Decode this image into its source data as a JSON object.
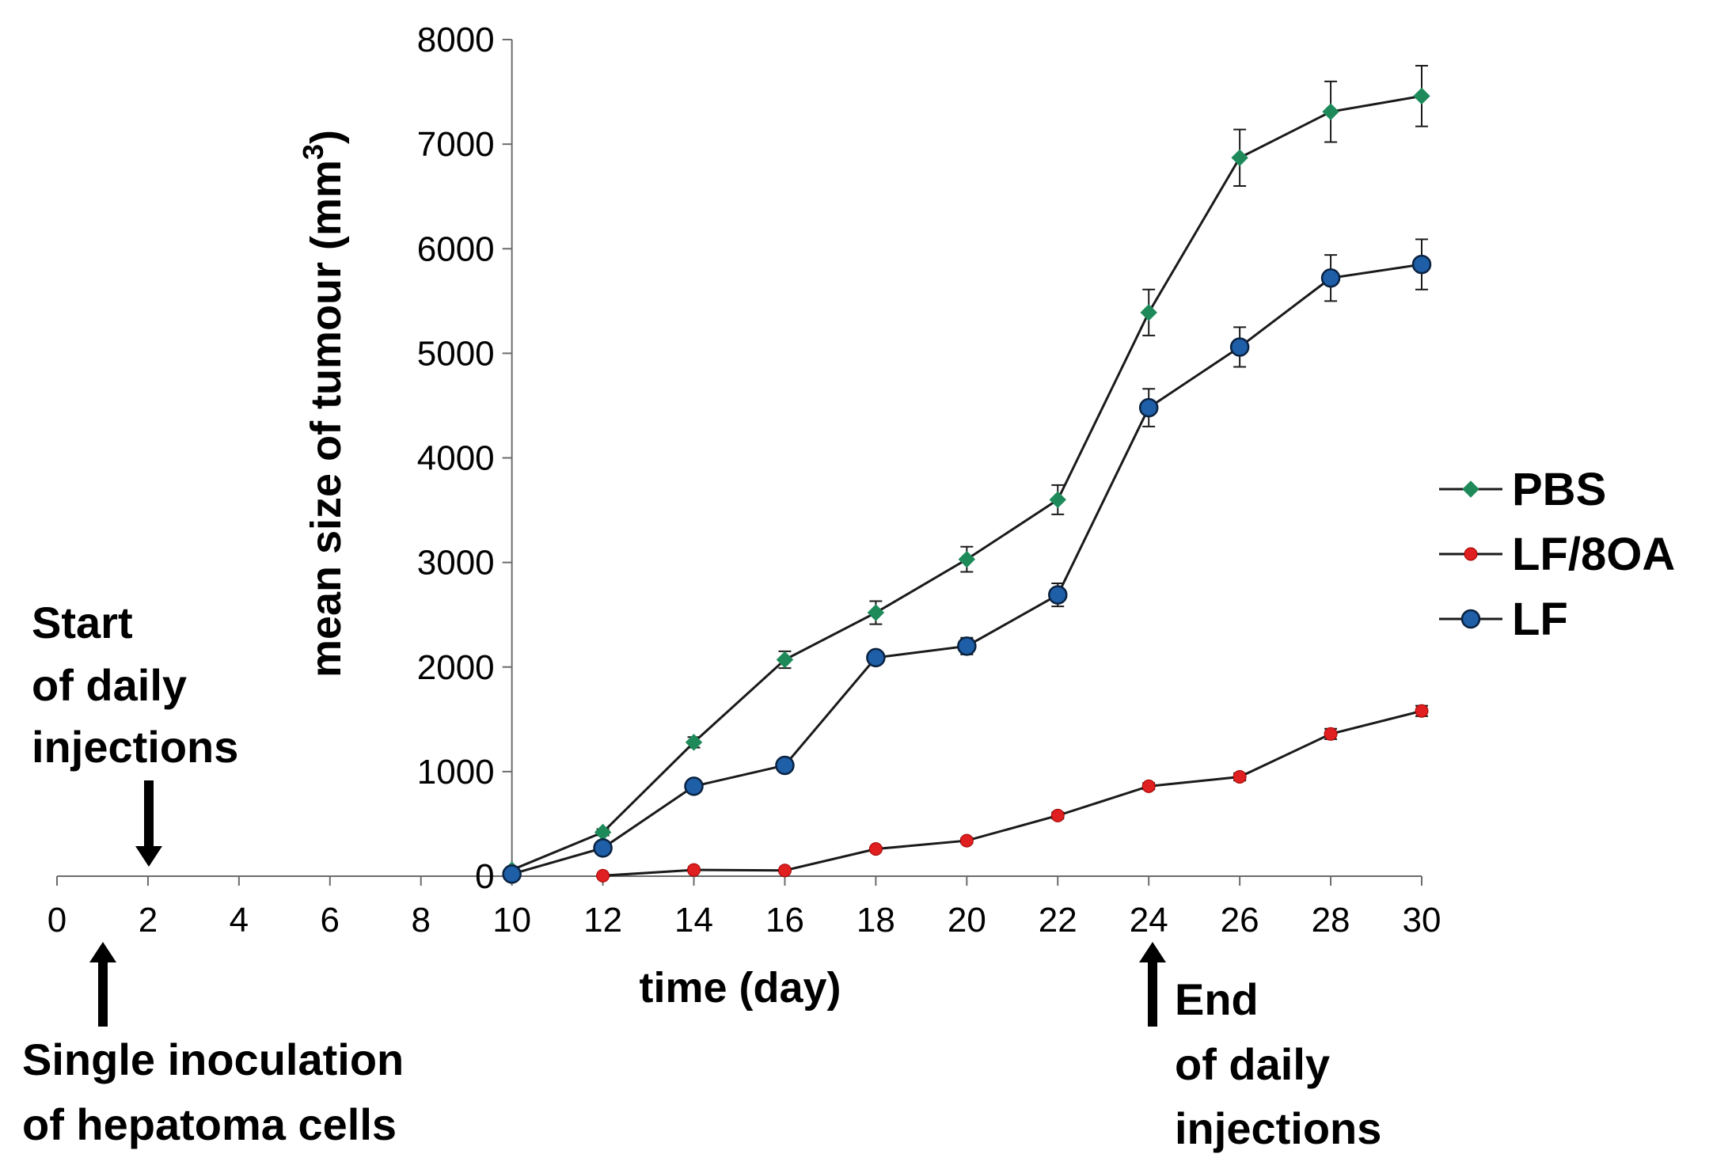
{
  "chart_data": {
    "type": "line",
    "xlabel": "time (day)",
    "ylabel": "mean size of tumour (mm³)",
    "ylabel_main": "mean size of tumour (mm",
    "ylabel_sup": "3",
    "ylabel_end": ")",
    "xlim": [
      0,
      30
    ],
    "ylim": [
      0,
      8000
    ],
    "x_ticks": [
      0,
      2,
      4,
      6,
      8,
      10,
      12,
      14,
      16,
      18,
      20,
      22,
      24,
      26,
      28,
      30
    ],
    "y_ticks": [
      0,
      1000,
      2000,
      3000,
      4000,
      5000,
      6000,
      7000,
      8000
    ],
    "x_tick_labels": [
      "0",
      "2",
      "4",
      "6",
      "8",
      "10",
      "12",
      "14",
      "16",
      "18",
      "20",
      "22",
      "24",
      "26",
      "28",
      "30"
    ],
    "y_tick_labels": [
      "0",
      "1000",
      "2000",
      "3000",
      "4000",
      "5000",
      "6000",
      "7000",
      "8000"
    ],
    "legend_position": "right",
    "series": [
      {
        "name": "PBS",
        "color": "#1e8a5a",
        "marker": "diamond",
        "x": [
          10,
          12,
          14,
          16,
          18,
          20,
          22,
          24,
          26,
          28,
          30
        ],
        "values": [
          60,
          420,
          1280,
          2070,
          2520,
          3030,
          3600,
          5390,
          6870,
          7310,
          7460
        ],
        "errors": [
          20,
          30,
          50,
          80,
          110,
          120,
          140,
          220,
          270,
          290,
          290
        ]
      },
      {
        "name": "LF/8OA",
        "color": "#e02020",
        "marker": "circle-small",
        "x": [
          12,
          14,
          16,
          18,
          20,
          22,
          24,
          26,
          28,
          30
        ],
        "values": [
          5,
          60,
          55,
          260,
          340,
          580,
          860,
          950,
          1360,
          1580
        ],
        "errors": [
          0,
          10,
          10,
          20,
          25,
          30,
          30,
          35,
          50,
          50
        ]
      },
      {
        "name": "LF",
        "color": "#1f5fa8",
        "marker": "circle",
        "x": [
          10,
          12,
          14,
          16,
          18,
          20,
          22,
          24,
          26,
          28,
          30
        ],
        "values": [
          20,
          270,
          860,
          1060,
          2090,
          2200,
          2690,
          4480,
          5060,
          5720,
          5850
        ],
        "errors": [
          20,
          30,
          40,
          40,
          60,
          80,
          110,
          180,
          190,
          220,
          240
        ]
      }
    ],
    "annotations": [
      {
        "name": "start-note",
        "lines": [
          "Start",
          "of daily",
          "injections"
        ],
        "x": 2,
        "arrow": "down"
      },
      {
        "name": "inoculation-note",
        "lines": [
          "Single inoculation",
          "of hepatoma cells"
        ],
        "x": 1,
        "arrow": "up"
      },
      {
        "name": "end-note",
        "lines": [
          "End",
          "of daily",
          "injections"
        ],
        "x": 24,
        "arrow": "up"
      }
    ]
  }
}
